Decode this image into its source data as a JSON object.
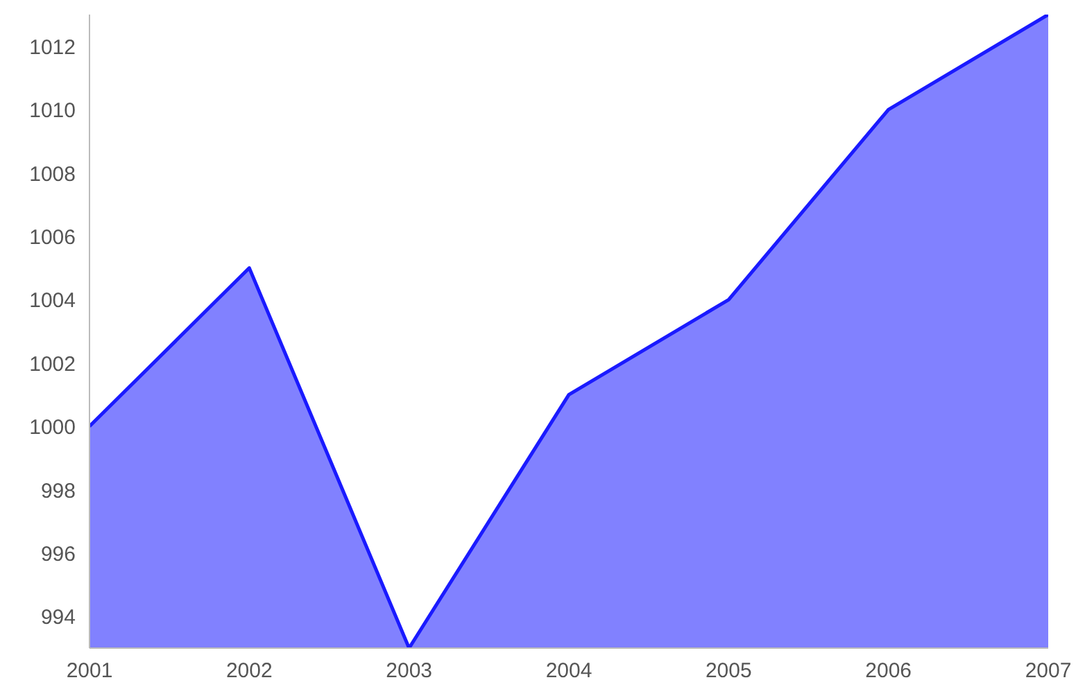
{
  "chart_data": {
    "type": "area",
    "x": [
      2001,
      2002,
      2003,
      2004,
      2005,
      2006,
      2007
    ],
    "series": [
      {
        "color": "#1a1aff",
        "values": [
          1000,
          1005,
          993,
          1001,
          1004,
          1010,
          1013
        ]
      }
    ],
    "xlim": [
      2001,
      2007
    ],
    "xticks": [
      2001,
      2002,
      2003,
      2004,
      2005,
      2006,
      2007
    ],
    "ylim": [
      993,
      1013
    ],
    "yticks": [
      994,
      996,
      998,
      1000,
      1002,
      1004,
      1006,
      1008,
      1010,
      1012
    ],
    "grid": false
  }
}
